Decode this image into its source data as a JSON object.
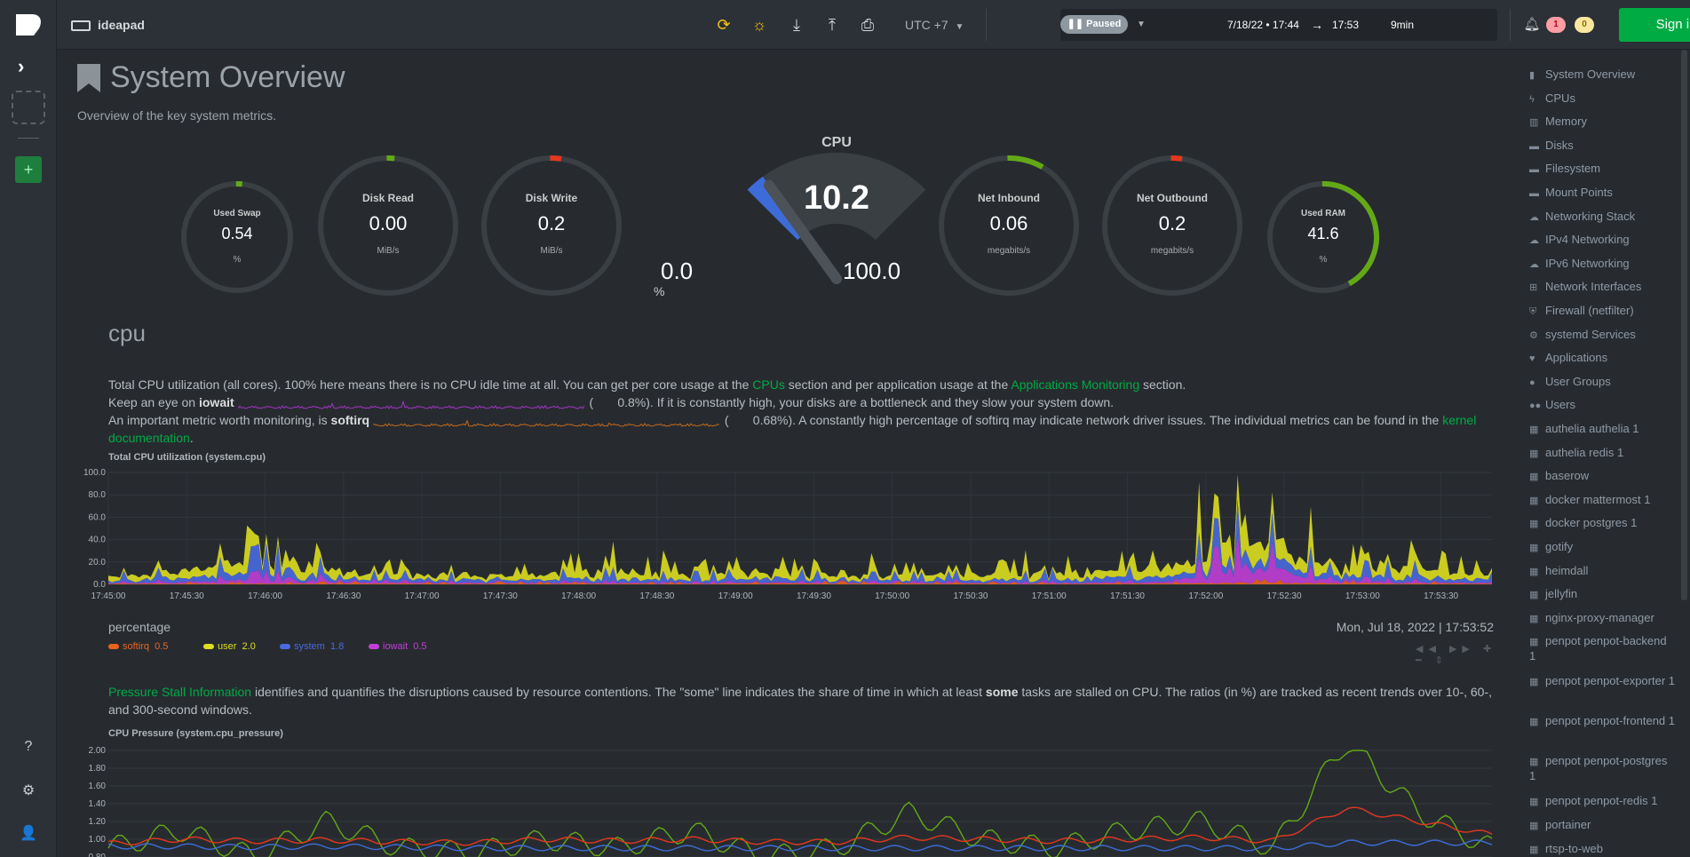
{
  "topbar": {
    "host": "ideapad",
    "timezone": "UTC +7",
    "status": "Paused",
    "range_start": "7/18/22 • 17:44",
    "range_arrow": "→",
    "range_end": "17:53",
    "duration": "9min",
    "alerts_critical": "1",
    "alerts_warning": "0",
    "signin_label": "Sign in"
  },
  "page": {
    "title": "System Overview",
    "subtitle": "Overview of the key system metrics."
  },
  "gauges": [
    {
      "title": "Used Swap",
      "value": "0.54",
      "unit": "%",
      "level": 0.0054
    },
    {
      "title": "Disk Read",
      "value": "0.00",
      "unit": "MiB/s",
      "level": 0.0
    },
    {
      "title": "Disk Write",
      "value": "0.2",
      "unit": "MiB/s",
      "level": 0.02
    },
    {
      "title": "Net Inbound",
      "value": "0.06",
      "unit": "megabits/s",
      "level": 0.08
    },
    {
      "title": "Net Outbound",
      "value": "0.2",
      "unit": "megabits/s",
      "level": 0.02
    },
    {
      "title": "Used RAM",
      "value": "41.6",
      "unit": "%",
      "level": 0.416
    }
  ],
  "cpu_gauge": {
    "title": "CPU",
    "value": "10.2",
    "min": "0.0",
    "max": "100.0",
    "unit": "%",
    "level": 0.102
  },
  "cpu_section": {
    "heading": "cpu",
    "p1_a": "Total CPU utilization (all cores). 100% here means there is no CPU idle time at all. You can get per core usage at the ",
    "p1_link1": "CPUs",
    "p1_b": " section and per application usage at the ",
    "p1_link2": "Applications Monitoring",
    "p1_c": " section.",
    "p2_a": "Keep an eye on ",
    "p2_b": "iowait",
    "p2_paren": "(",
    "p2_val": "0.8%",
    "p2_c": "). If it is constantly high, your disks are a bottleneck and they slow your system down.",
    "p3_a": "An important metric worth monitoring, is ",
    "p3_b": "softirq",
    "p3_paren": "(",
    "p3_val": "0.68%",
    "p3_c": "). A constantly high percentage of softirq may indicate network driver issues. The individual metrics can be found in the ",
    "p3_link": "kernel documentation",
    "p3_d": ".",
    "chart_title": "Total CPU utilization (system.cpu)",
    "units": "percentage",
    "timestamp": "Mon, Jul 18, 2022 | 17:53:52",
    "legend": [
      {
        "name": "softirq",
        "value": "0.5",
        "color": "#e9631e"
      },
      {
        "name": "user",
        "value": "2.0",
        "color": "#dede1f"
      },
      {
        "name": "system",
        "value": "1.8",
        "color": "#4a6ae0"
      },
      {
        "name": "iowait",
        "value": "0.5",
        "color": "#c13fd8"
      }
    ]
  },
  "pressure_section": {
    "p_link": "Pressure Stall Information",
    "p_a": " identifies and quantifies the disruptions caused by resource contentions. The \"some\" line indicates the share of time in which at least ",
    "p_b": "some",
    "p_c": " tasks are stalled on CPU. The ratios (in %) are tracked as recent trends over 10-, 60-, and 300-second windows.",
    "chart_title": "CPU Pressure (system.cpu_pressure)"
  },
  "nav": [
    {
      "label": "System Overview",
      "icon": "bookmark-icon"
    },
    {
      "label": "CPUs",
      "icon": "bolt-icon"
    },
    {
      "label": "Memory",
      "icon": "memory-icon"
    },
    {
      "label": "Disks",
      "icon": "hdd-icon"
    },
    {
      "label": "Filesystem",
      "icon": "hdd-icon"
    },
    {
      "label": "Mount Points",
      "icon": "hdd-icon"
    },
    {
      "label": "Networking Stack",
      "icon": "cloud-icon"
    },
    {
      "label": "IPv4 Networking",
      "icon": "cloud-icon"
    },
    {
      "label": "IPv6 Networking",
      "icon": "cloud-icon"
    },
    {
      "label": "Network Interfaces",
      "icon": "sitemap-icon"
    },
    {
      "label": "Firewall (netfilter)",
      "icon": "shield-icon"
    },
    {
      "label": "systemd Services",
      "icon": "cogs-icon"
    },
    {
      "label": "Applications",
      "icon": "heartbeat-icon"
    },
    {
      "label": "User Groups",
      "icon": "user-icon"
    },
    {
      "label": "Users",
      "icon": "users-icon"
    },
    {
      "label": "authelia authelia 1",
      "icon": "grid-icon"
    },
    {
      "label": "authelia redis 1",
      "icon": "grid-icon"
    },
    {
      "label": "baserow",
      "icon": "grid-icon"
    },
    {
      "label": "docker mattermost 1",
      "icon": "grid-icon"
    },
    {
      "label": "docker postgres 1",
      "icon": "grid-icon"
    },
    {
      "label": "gotify",
      "icon": "grid-icon"
    },
    {
      "label": "heimdall",
      "icon": "grid-icon"
    },
    {
      "label": "jellyfin",
      "icon": "grid-icon"
    },
    {
      "label": "nginx-proxy-manager",
      "icon": "grid-icon"
    },
    {
      "label": "penpot penpot-backend 1",
      "icon": "grid-icon"
    },
    {
      "label": "penpot penpot-exporter 1",
      "icon": "grid-icon"
    },
    {
      "label": "penpot penpot-frontend 1",
      "icon": "grid-icon"
    },
    {
      "label": "penpot penpot-postgres 1",
      "icon": "grid-icon"
    },
    {
      "label": "penpot penpot-redis 1",
      "icon": "grid-icon"
    },
    {
      "label": "portainer",
      "icon": "grid-icon"
    },
    {
      "label": "rtsp-to-web",
      "icon": "grid-icon"
    }
  ],
  "chart_data": [
    {
      "type": "area",
      "title": "Total CPU utilization (system.cpu)",
      "ylabel": "percentage",
      "ylim": [
        0,
        100
      ],
      "y_ticks": [
        "100.0",
        "80.0",
        "60.0",
        "40.0",
        "20.0",
        "0.0"
      ],
      "x_ticks": [
        "17:45:00",
        "17:45:30",
        "17:46:00",
        "17:46:30",
        "17:47:00",
        "17:47:30",
        "17:48:00",
        "17:48:30",
        "17:49:00",
        "17:49:30",
        "17:50:00",
        "17:50:30",
        "17:51:00",
        "17:51:30",
        "17:52:00",
        "17:52:30",
        "17:53:00",
        "17:53:30"
      ],
      "series": [
        {
          "name": "softirq",
          "values": [
            0.5,
            0.6,
            0.5,
            0.7,
            0.5,
            0.6,
            0.5,
            0.5,
            0.6,
            0.7,
            0.6,
            0.5,
            0.5,
            0.6,
            1.2,
            0.8,
            0.7,
            0.6
          ]
        },
        {
          "name": "user",
          "values": [
            3,
            5,
            12,
            4,
            4,
            3,
            6,
            4,
            5,
            4,
            4,
            4,
            5,
            6,
            18,
            6,
            8,
            3
          ]
        },
        {
          "name": "system",
          "values": [
            2,
            3,
            6,
            2,
            2,
            2,
            3,
            2,
            3,
            2,
            2,
            2,
            3,
            3,
            8,
            3,
            4,
            2
          ]
        },
        {
          "name": "iowait",
          "values": [
            0.5,
            1,
            3,
            1,
            0.8,
            0.6,
            0.8,
            0.5,
            0.7,
            0.6,
            0.6,
            0.5,
            0.8,
            0.9,
            12,
            1.5,
            1,
            0.5
          ]
        }
      ]
    },
    {
      "type": "line",
      "title": "CPU Pressure (system.cpu_pressure)",
      "y_ticks": [
        "2.00",
        "1.80",
        "1.60",
        "1.40",
        "1.20",
        "1.00",
        "0.80"
      ],
      "series": [
        {
          "name": "",
          "color": "#63a917",
          "values": [
            0.9,
            1.1,
            0.8,
            1.2,
            0.9,
            0.85,
            1.0,
            0.9,
            1.1,
            0.8,
            0.9,
            1.3,
            1.0,
            0.9,
            1.1,
            1.2,
            0.9,
            2.1,
            1.3,
            0.9
          ]
        },
        {
          "name": "",
          "color": "#e4371e",
          "values": [
            0.95,
            1.0,
            0.98,
            0.99,
            0.97,
            0.96,
            1.0,
            0.98,
            1.0,
            0.97,
            0.97,
            1.02,
            1.0,
            0.98,
            1.0,
            1.02,
            0.98,
            1.35,
            1.2,
            1.05
          ]
        },
        {
          "name": "",
          "color": "#3d6cd8",
          "values": [
            0.92,
            0.92,
            0.91,
            0.92,
            0.91,
            0.9,
            0.9,
            0.9,
            0.9,
            0.9,
            0.9,
            0.9,
            0.9,
            0.9,
            0.9,
            0.9,
            0.9,
            0.96,
            0.96,
            0.96
          ]
        }
      ]
    }
  ]
}
